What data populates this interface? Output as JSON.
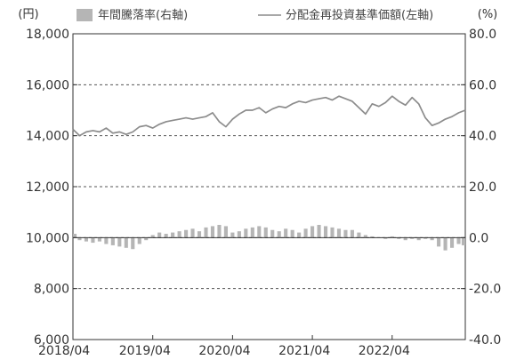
{
  "chart_data": {
    "type": "bar+line",
    "left_axis": {
      "unit_label": "(円)",
      "ylim": [
        6000,
        18000
      ],
      "ticks": [
        6000,
        8000,
        10000,
        12000,
        14000,
        16000,
        18000
      ],
      "tick_labels": [
        "6,000",
        "8,000",
        "10,000",
        "12,000",
        "14,000",
        "16,000",
        "18,000"
      ]
    },
    "right_axis": {
      "unit_label": "(%)",
      "ylim": [
        -40,
        80
      ],
      "ticks": [
        -40,
        -20,
        0,
        20,
        40,
        60,
        80
      ],
      "tick_labels": [
        "-40.0",
        "-20.0",
        "0.0",
        "20.0",
        "40.0",
        "60.0",
        "80.0"
      ]
    },
    "x_axis": {
      "start": "2018/04",
      "end": "2023/03",
      "tick_labels": [
        "2018/04",
        "2019/04",
        "2020/04",
        "2021/04",
        "2022/04"
      ]
    },
    "grid": "dashed horizontal",
    "legend": [
      {
        "label": "年間騰落率(右軸)",
        "marker": "bar",
        "color": "#b5b5b5"
      },
      {
        "label": "分配金再投資基準価額(左軸)",
        "marker": "line",
        "color": "#8c8c8c"
      }
    ],
    "x": [
      "2018/04",
      "2018/05",
      "2018/06",
      "2018/07",
      "2018/08",
      "2018/09",
      "2018/10",
      "2018/11",
      "2018/12",
      "2019/01",
      "2019/02",
      "2019/03",
      "2019/04",
      "2019/05",
      "2019/06",
      "2019/07",
      "2019/08",
      "2019/09",
      "2019/10",
      "2019/11",
      "2019/12",
      "2020/01",
      "2020/02",
      "2020/03",
      "2020/04",
      "2020/05",
      "2020/06",
      "2020/07",
      "2020/08",
      "2020/09",
      "2020/10",
      "2020/11",
      "2020/12",
      "2021/01",
      "2021/02",
      "2021/03",
      "2021/04",
      "2021/05",
      "2021/06",
      "2021/07",
      "2021/08",
      "2021/09",
      "2021/10",
      "2021/11",
      "2021/12",
      "2022/01",
      "2022/02",
      "2022/03",
      "2022/04",
      "2022/05",
      "2022/06",
      "2022/07",
      "2022/08",
      "2022/09",
      "2022/10",
      "2022/11",
      "2022/12",
      "2023/01",
      "2023/02",
      "2023/03"
    ],
    "series": [
      {
        "name": "分配金再投資基準価額(左軸)",
        "kind": "line",
        "axis": "left",
        "values": [
          14250,
          14000,
          14150,
          14200,
          14150,
          14300,
          14100,
          14150,
          14050,
          14150,
          14350,
          14400,
          14300,
          14450,
          14550,
          14600,
          14650,
          14700,
          14650,
          14700,
          14750,
          14900,
          14550,
          14350,
          14650,
          14850,
          15000,
          15000,
          15100,
          14900,
          15050,
          15150,
          15100,
          15250,
          15350,
          15300,
          15400,
          15450,
          15500,
          15400,
          15550,
          15450,
          15350,
          15100,
          14850,
          15250,
          15150,
          15300,
          15550,
          15350,
          15200,
          15500,
          15250,
          14700,
          14400,
          14500,
          14650,
          14750,
          14900,
          15000
        ]
      },
      {
        "name": "年間騰落率(右軸)",
        "kind": "bar",
        "axis": "right",
        "values": [
          1.5,
          -1.0,
          -1.5,
          -2.0,
          -1.5,
          -2.5,
          -3.0,
          -3.5,
          -4.0,
          -4.5,
          -2.5,
          -1.0,
          1.0,
          2.0,
          1.5,
          2.0,
          2.5,
          3.0,
          3.5,
          2.5,
          4.0,
          4.5,
          5.0,
          4.5,
          2.0,
          2.5,
          3.5,
          4.0,
          4.5,
          4.0,
          3.0,
          2.5,
          3.5,
          3.0,
          2.0,
          3.5,
          4.5,
          5.0,
          4.5,
          4.0,
          3.5,
          3.0,
          3.0,
          2.0,
          1.0,
          0.5,
          0.0,
          -0.5,
          0.5,
          -0.5,
          -1.0,
          -0.5,
          -1.0,
          -0.5,
          -1.0,
          -3.5,
          -5.0,
          -4.0,
          -2.5,
          -3.0
        ]
      }
    ]
  }
}
